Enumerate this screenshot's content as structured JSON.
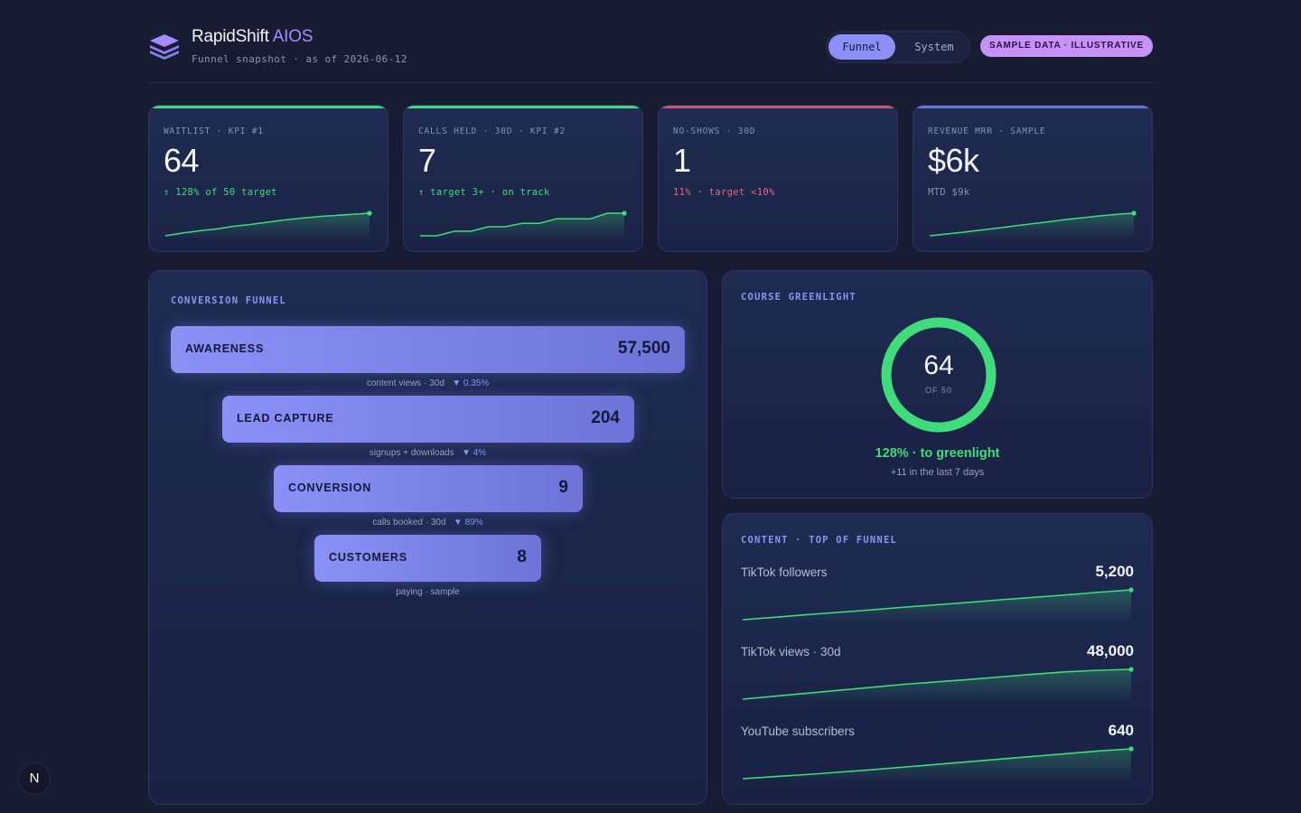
{
  "header": {
    "brand_name": "RapidShift",
    "brand_accent": "AIOS",
    "subtitle": "Funnel snapshot · as of 2026-06-12",
    "tabs": [
      "Funnel",
      "System"
    ],
    "badge": "SAMPLE DATA · ILLUSTRATIVE"
  },
  "colors": {
    "background": "#181c33",
    "accent_purple": "#8c8ff6",
    "positive_green": "#3fdc7b",
    "negative_red": "#e0687a",
    "badge_purple": "#c792f8"
  },
  "kpis": [
    {
      "label": "WAITLIST · KPI #1",
      "value": "64",
      "note": "↑ 128% of 50 target",
      "status": "good",
      "trend": [
        0.0,
        0.12,
        0.22,
        0.3,
        0.42,
        0.5,
        0.6,
        0.7,
        0.78,
        0.85,
        0.9,
        0.95,
        1.0
      ]
    },
    {
      "label": "CALLS HELD · 30D · KPI #2",
      "value": "7",
      "note": "↑ target 3+ · on track",
      "status": "good",
      "trend": [
        0.0,
        0.0,
        0.2,
        0.2,
        0.4,
        0.4,
        0.55,
        0.55,
        0.75,
        0.75,
        0.75,
        1.0,
        1.0
      ]
    },
    {
      "label": "NO-SHOWS · 30D",
      "value": "1",
      "note": "11% · target <10%",
      "status": "bad",
      "trend": []
    },
    {
      "label": "REVENUE MRR · SAMPLE",
      "value": "$6k",
      "note": "MTD $9k",
      "status": "neutral",
      "trend": [
        0.0,
        0.08,
        0.16,
        0.25,
        0.34,
        0.44,
        0.53,
        0.62,
        0.72,
        0.8,
        0.88,
        0.95,
        1.0
      ]
    }
  ],
  "funnel": {
    "title": "CONVERSION FUNNEL",
    "stages": [
      {
        "name": "AWARENESS",
        "count": "57,500",
        "note": "content views · 30d",
        "rate": "▼ 0.35%"
      },
      {
        "name": "LEAD CAPTURE",
        "count": "204",
        "note": "signups + downloads",
        "rate": "▼ 4%"
      },
      {
        "name": "CONVERSION",
        "count": "9",
        "note": "calls booked · 30d",
        "rate": "▼ 89%"
      },
      {
        "name": "CUSTOMERS",
        "count": "8",
        "note": "paying · sample",
        "rate": ""
      }
    ]
  },
  "greenlight": {
    "title": "COURSE GREENLIGHT",
    "value": "64",
    "of": "OF 50",
    "progress": 1.0,
    "pct_text": "128% · to greenlight",
    "note": "+11 in the last 7 days"
  },
  "content": {
    "title": "CONTENT · TOP OF FUNNEL",
    "rows": [
      {
        "label": "TikTok followers",
        "value": "5,200",
        "trend": [
          0.0,
          0.08,
          0.17,
          0.25,
          0.33,
          0.42,
          0.5,
          0.58,
          0.67,
          0.75,
          0.83,
          0.92,
          1.0
        ]
      },
      {
        "label": "TikTok views · 30d",
        "value": "48,000",
        "trend": [
          0.0,
          0.1,
          0.2,
          0.3,
          0.4,
          0.5,
          0.58,
          0.66,
          0.75,
          0.84,
          0.92,
          0.97,
          1.0
        ]
      },
      {
        "label": "YouTube subscribers",
        "value": "640",
        "trend": [
          0.0,
          0.07,
          0.14,
          0.22,
          0.3,
          0.39,
          0.48,
          0.57,
          0.66,
          0.75,
          0.84,
          0.93,
          1.0
        ]
      }
    ]
  },
  "corner_button": "N"
}
